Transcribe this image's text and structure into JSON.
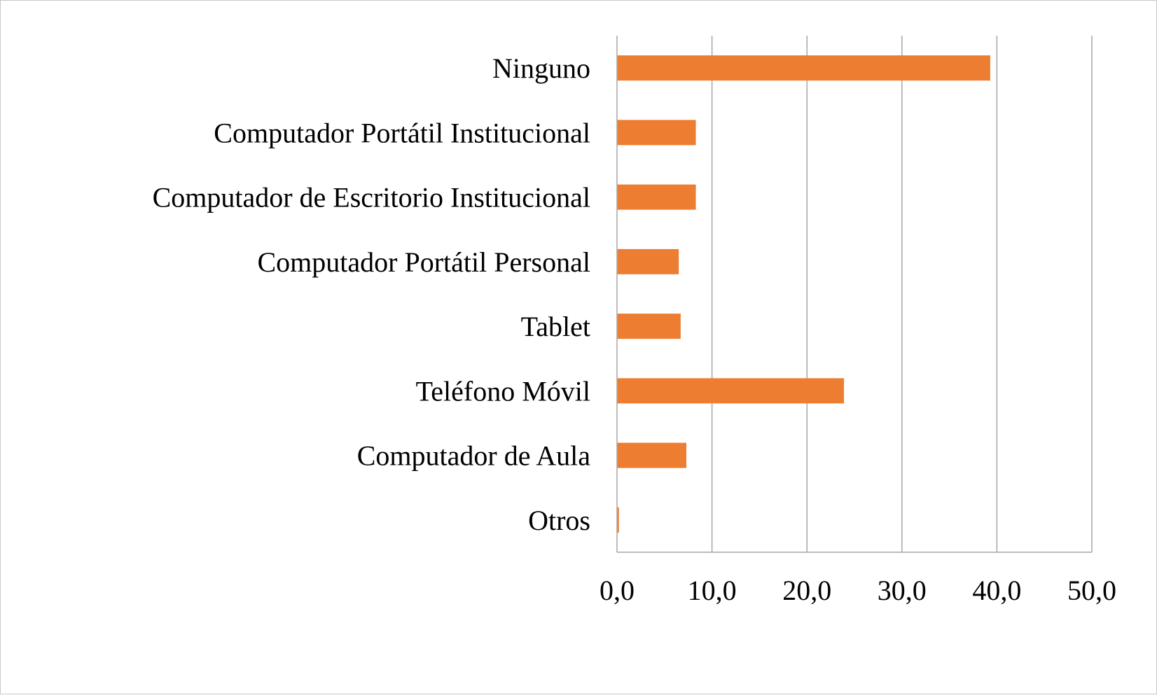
{
  "chart_data": {
    "type": "bar",
    "orientation": "horizontal",
    "categories": [
      "Ninguno",
      "Computador Portátil Institucional",
      "Computador de Escritorio Institucional",
      "Computador Portátil Personal",
      "Tablet",
      "Teléfono Móvil",
      "Computador de Aula",
      "Otros"
    ],
    "values": [
      39.3,
      8.3,
      8.3,
      6.5,
      6.7,
      23.9,
      7.3,
      0.2
    ],
    "xlim": [
      0,
      50
    ],
    "xticks": [
      "0,0",
      "10,0",
      "20,0",
      "30,0",
      "40,0",
      "50,0"
    ],
    "xtick_values": [
      0,
      10,
      20,
      30,
      40,
      50
    ],
    "title": "",
    "xlabel": "",
    "ylabel": "",
    "grid": "vertical",
    "legend": "none",
    "colors": {
      "bar": "#ED7D31",
      "grid": "#a6a6a6",
      "axis": "#a6a6a6",
      "border": "#c8c8c8"
    }
  }
}
